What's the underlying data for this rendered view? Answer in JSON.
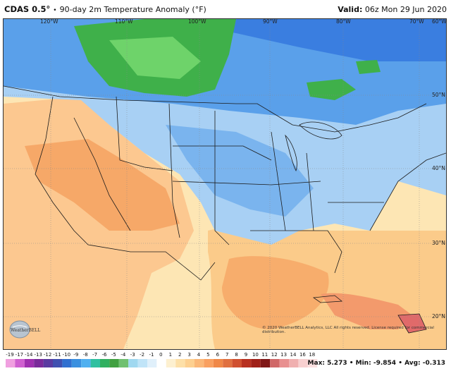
{
  "header": {
    "model": "CDAS 0.5°",
    "separator": "•",
    "product": "90-day 2m Temperature Anomaly (°F)",
    "valid_label": "Valid:",
    "valid_value": "06z Mon 29 Jun 2020"
  },
  "map": {
    "lon_labels": [
      "120°W",
      "110°W",
      "100°W",
      "90°W",
      "80°W",
      "70°W",
      "60°W"
    ],
    "lat_labels": [
      "50°N",
      "40°N",
      "30°N",
      "20°N"
    ]
  },
  "watermark": {
    "copyright": "© 2020 WeatherBELL Analytics, LLC All rights reserved. License required for commercial distribution.",
    "logo_text": "WeatherBELL"
  },
  "colorbar": {
    "ticks": [
      "-19",
      "-17",
      "-14",
      "-13",
      "-12",
      "-11",
      "-10",
      "-9",
      "-8",
      "-7",
      "-6",
      "-5",
      "-4",
      "-3",
      "-2",
      "-1",
      "0",
      "1",
      "2",
      "3",
      "4",
      "5",
      "6",
      "7",
      "8",
      "9",
      "10",
      "11",
      "12",
      "13",
      "14",
      "16",
      "18"
    ],
    "colors": [
      "#f0a0e0",
      "#d060d0",
      "#a030b0",
      "#7a2a9a",
      "#5a3aa0",
      "#4050b0",
      "#3070d0",
      "#3a90e0",
      "#50b0f0",
      "#30c0a0",
      "#30b060",
      "#40a040",
      "#70c070",
      "#a0d8f0",
      "#c0e4f8",
      "#e0f0fb",
      "#ffffff",
      "#fdf0d0",
      "#fde0a8",
      "#fdd090",
      "#fbb878",
      "#f9a060",
      "#f08848",
      "#e07040",
      "#d05030",
      "#b83020",
      "#a02018",
      "#801818",
      "#d06868",
      "#e89090",
      "#f0b0b0",
      "#f8d0d0",
      "#fce0e0"
    ]
  },
  "stats": {
    "max_label": "Max:",
    "max_value": "5.273",
    "min_label": "Min:",
    "min_value": "-9.854",
    "avg_label": "Avg:",
    "avg_value": "-0.313"
  }
}
